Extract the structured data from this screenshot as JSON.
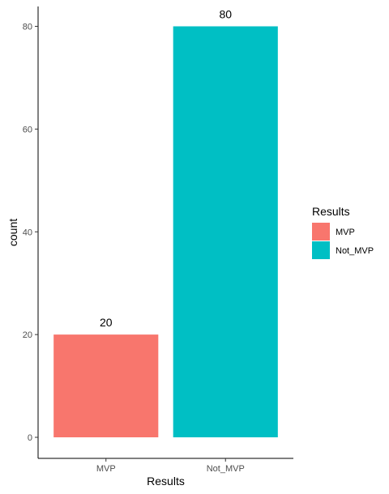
{
  "chart_data": {
    "type": "bar",
    "categories": [
      "MVP",
      "Not_MVP"
    ],
    "values": [
      20,
      80
    ],
    "data_labels": [
      "20",
      "80"
    ],
    "colors": [
      "#F8766D",
      "#00BFC4"
    ],
    "xlabel": "Results",
    "ylabel": "count",
    "ylim": [
      0,
      84
    ],
    "yticks": [
      0,
      20,
      40,
      60,
      80
    ],
    "grid": false,
    "legend": {
      "title": "Results",
      "placement": "right",
      "entries": [
        {
          "label": "MVP",
          "color": "#F8766D"
        },
        {
          "label": "Not_MVP",
          "color": "#00BFC4"
        }
      ]
    }
  }
}
